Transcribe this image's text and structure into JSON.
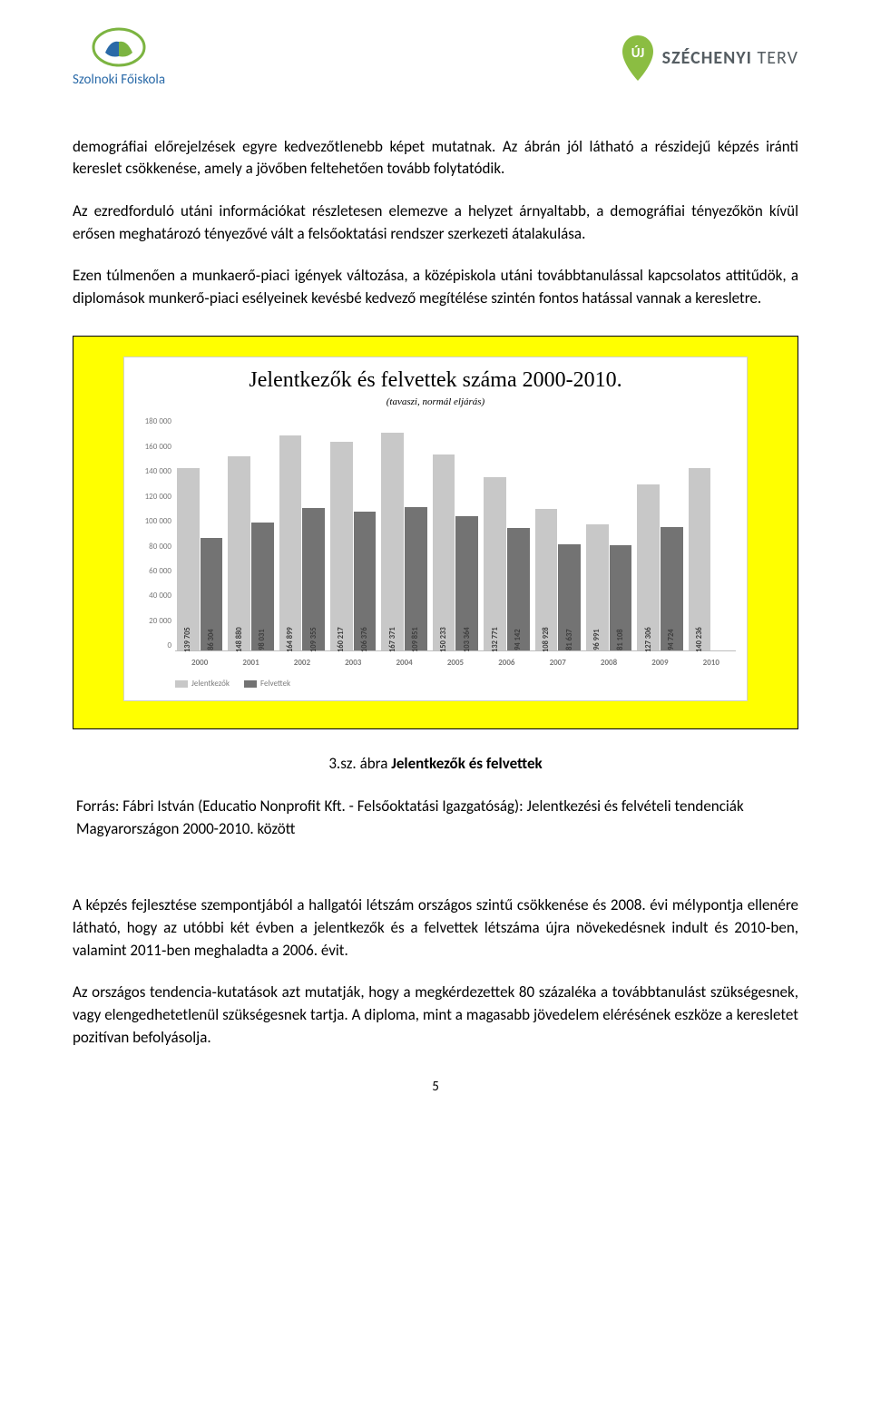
{
  "header": {
    "left_logo_text": "Szolnoki Főiskola",
    "right_logo_uj": "ÚJ",
    "right_logo_plan": "SZÉCHENYI",
    "right_logo_plan2": "TERV"
  },
  "paragraphs": {
    "p1": "demográfiai előrejelzések egyre kedvezőtlenebb képet mutatnak. Az ábrán jól látható a részidejű képzés iránti kereslet csökkenése, amely a jövőben feltehetően tovább folytatódik.",
    "p2": "Az ezredforduló utáni információkat részletesen elemezve a helyzet árnyaltabb, a demográfiai tényezőkön kívül erősen meghatározó tényezővé vált a felsőoktatási rendszer szerkezeti átalakulása.",
    "p3": "Ezen túlmenően a munkaerő‑piaci igények változása, a középiskola utáni továbbtanulással kapcsolatos attitűdök, a diplomások munkerő‑piaci esélyeinek kevésbé kedvező megítélése szintén fontos hatással vannak a keresletre.",
    "p4": "A képzés fejlesztése szempontjából a hallgatói létszám országos szintű csökkenése és 2008. évi mélypontja ellenére látható, hogy az utóbbi két évben a jelentkezők és a felvettek létszáma újra növekedésnek indult és 2010‑ben, valamint 2011‑ben meghaladta a 2006. évit.",
    "p5": "Az országos tendencia‑kutatások azt mutatják, hogy a megkérdezettek 80 százaléka a továbbtanulást szükségesnek, vagy elengedhetetlenül szükségesnek tartja. A diploma, mint a magasabb jövedelem elérésének eszköze a keresletet pozitívan befolyásolja."
  },
  "chart": {
    "title": "Jelentkezők és felvettek száma 2000-2010.",
    "subtitle": "(tavaszi, normál eljárás)",
    "type": "bar",
    "y_max": 180000,
    "y_tick_step": 20000,
    "y_ticks": [
      "0",
      "20 000",
      "40 000",
      "60 000",
      "80 000",
      "100 000",
      "120 000",
      "140 000",
      "160 000",
      "180 000"
    ],
    "categories": [
      "2000",
      "2001",
      "2002",
      "2003",
      "2004",
      "2005",
      "2006",
      "2007",
      "2008",
      "2009",
      "2010"
    ],
    "series": [
      {
        "name": "Jelentkezők",
        "color": "#c8c8c8",
        "values": [
          139705,
          148880,
          164899,
          160217,
          167371,
          150233,
          132771,
          108928,
          96991,
          127306,
          140236
        ],
        "labels": [
          "139 705",
          "148 880",
          "164 899",
          "160 217",
          "167 371",
          "150 233",
          "132 771",
          "108 928",
          "96 991",
          "127 306",
          "140 236"
        ]
      },
      {
        "name": "Felvettek",
        "color": "#737373",
        "values": [
          86304,
          98031,
          109355,
          106376,
          109851,
          103364,
          94142,
          81637,
          81108,
          94724,
          0
        ],
        "labels": [
          "86 304",
          "98 031",
          "109 355",
          "106 376",
          "109 851",
          "103 364",
          "94 142",
          "81 637",
          "81 108",
          "94 724",
          ""
        ]
      }
    ],
    "legend_labels": [
      "Jelentkezők",
      "Felvettek"
    ],
    "background": "#ffff00",
    "card_background": "#ffffff",
    "bar_light": "#c8c8c8",
    "bar_dark": "#737373"
  },
  "caption_prefix": "3.sz. ábra  ",
  "caption_bold": "Jelentkezők és felvettek",
  "source": "Forrás: Fábri István (Educatio Nonprofit Kft. - Felsőoktatási Igazgatóság): Jelentkezési és felvételi tendenciák Magyarországon 2000-2010. között",
  "page_number": "5"
}
